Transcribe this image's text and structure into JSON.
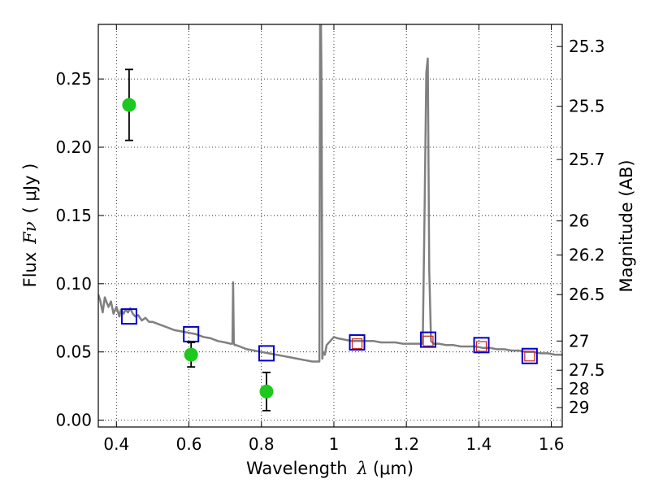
{
  "chart_data": {
    "type": "line",
    "xlabel": "Wavelength",
    "xlabel_symbol": "λ",
    "xlabel_unit": "(μm)",
    "ylabel": "Flux",
    "ylabel_symbol": "Fν",
    "ylabel_unit": "( μJy )",
    "y2label": "Magnitude (AB)",
    "xlim": [
      0.35,
      1.63
    ],
    "ylim": [
      -0.005,
      0.29
    ],
    "grid": true,
    "x_ticks": [
      {
        "value": 0.4,
        "label": "0.4"
      },
      {
        "value": 0.6,
        "label": "0.6"
      },
      {
        "value": 0.8,
        "label": "0.8"
      },
      {
        "value": 1.0,
        "label": "1"
      },
      {
        "value": 1.2,
        "label": "1.2"
      },
      {
        "value": 1.4,
        "label": "1.4"
      },
      {
        "value": 1.6,
        "label": "1.6"
      }
    ],
    "y_ticks": [
      {
        "value": 0.0,
        "label": "0.00"
      },
      {
        "value": 0.05,
        "label": "0.05"
      },
      {
        "value": 0.1,
        "label": "0.10"
      },
      {
        "value": 0.15,
        "label": "0.15"
      },
      {
        "value": 0.2,
        "label": "0.20"
      },
      {
        "value": 0.25,
        "label": "0.25"
      }
    ],
    "y2_ticks": [
      {
        "flux": 0.2738,
        "label": "25.3"
      },
      {
        "flux": 0.23,
        "label": "25.5"
      },
      {
        "flux": 0.191,
        "label": "25.7"
      },
      {
        "flux": 0.146,
        "label": "26"
      },
      {
        "flux": 0.121,
        "label": "26.2"
      },
      {
        "flux": 0.092,
        "label": "26.5"
      },
      {
        "flux": 0.058,
        "label": "27"
      },
      {
        "flux": 0.0366,
        "label": "27.5"
      },
      {
        "flux": 0.0231,
        "label": "28"
      },
      {
        "flux": 0.0092,
        "label": "29"
      }
    ],
    "sed_model": {
      "color": "#808080",
      "x": [
        0.35,
        0.355,
        0.362,
        0.368,
        0.372,
        0.378,
        0.385,
        0.392,
        0.4,
        0.408,
        0.412,
        0.42,
        0.425,
        0.432,
        0.438,
        0.445,
        0.452,
        0.46,
        0.47,
        0.48,
        0.49,
        0.5,
        0.52,
        0.54,
        0.56,
        0.58,
        0.6,
        0.62,
        0.64,
        0.66,
        0.68,
        0.7,
        0.715,
        0.72,
        0.722,
        0.724,
        0.726,
        0.73,
        0.74,
        0.76,
        0.78,
        0.8,
        0.82,
        0.84,
        0.86,
        0.88,
        0.9,
        0.92,
        0.94,
        0.955,
        0.96,
        0.962,
        0.964,
        0.966,
        0.968,
        0.97,
        0.975,
        0.98,
        0.99,
        1.0,
        1.01,
        1.03,
        1.05,
        1.07,
        1.09,
        1.11,
        1.13,
        1.15,
        1.17,
        1.19,
        1.21,
        1.23,
        1.245,
        1.25,
        1.255,
        1.259,
        1.263,
        1.268,
        1.275,
        1.29,
        1.31,
        1.33,
        1.35,
        1.37,
        1.39,
        1.41,
        1.43,
        1.45,
        1.47,
        1.49,
        1.51,
        1.53,
        1.55,
        1.57,
        1.59,
        1.61,
        1.63
      ],
      "y": [
        0.092,
        0.088,
        0.079,
        0.09,
        0.087,
        0.083,
        0.087,
        0.078,
        0.083,
        0.076,
        0.081,
        0.078,
        0.081,
        0.079,
        0.082,
        0.078,
        0.076,
        0.077,
        0.073,
        0.075,
        0.072,
        0.072,
        0.07,
        0.068,
        0.066,
        0.065,
        0.064,
        0.063,
        0.061,
        0.06,
        0.058,
        0.057,
        0.056,
        0.056,
        0.101,
        0.057,
        0.055,
        0.055,
        0.054,
        0.052,
        0.051,
        0.05,
        0.049,
        0.048,
        0.047,
        0.046,
        0.045,
        0.044,
        0.043,
        0.043,
        0.043,
        0.292,
        0.3,
        0.24,
        0.045,
        0.05,
        0.048,
        0.055,
        0.058,
        0.061,
        0.06,
        0.059,
        0.058,
        0.058,
        0.058,
        0.058,
        0.057,
        0.057,
        0.057,
        0.056,
        0.056,
        0.056,
        0.056,
        0.15,
        0.255,
        0.265,
        0.11,
        0.058,
        0.056,
        0.056,
        0.055,
        0.055,
        0.054,
        0.054,
        0.054,
        0.053,
        0.053,
        0.052,
        0.052,
        0.051,
        0.051,
        0.05,
        0.05,
        0.049,
        0.049,
        0.048,
        0.048
      ]
    },
    "series": [
      {
        "marker": "filled-circle",
        "color": "#1ec81e",
        "points": [
          {
            "x": 0.435,
            "y": 0.231,
            "yerr": 0.026
          },
          {
            "x": 0.606,
            "y": 0.048,
            "yerr": 0.009
          },
          {
            "x": 0.814,
            "y": 0.021,
            "yerr": 0.014
          }
        ]
      },
      {
        "marker": "open-square",
        "color": "#0000cc",
        "points": [
          {
            "x": 0.435,
            "y": 0.076
          },
          {
            "x": 0.606,
            "y": 0.063
          },
          {
            "x": 0.814,
            "y": 0.049
          },
          {
            "x": 1.064,
            "y": 0.057
          },
          {
            "x": 1.26,
            "y": 0.059
          },
          {
            "x": 1.407,
            "y": 0.055
          },
          {
            "x": 1.54,
            "y": 0.047
          }
        ]
      },
      {
        "marker": "small-open-square",
        "color": "#cc2222",
        "points": [
          {
            "x": 1.064,
            "y": 0.056
          },
          {
            "x": 1.26,
            "y": 0.058
          },
          {
            "x": 1.407,
            "y": 0.054
          },
          {
            "x": 1.54,
            "y": 0.047
          }
        ]
      }
    ]
  }
}
